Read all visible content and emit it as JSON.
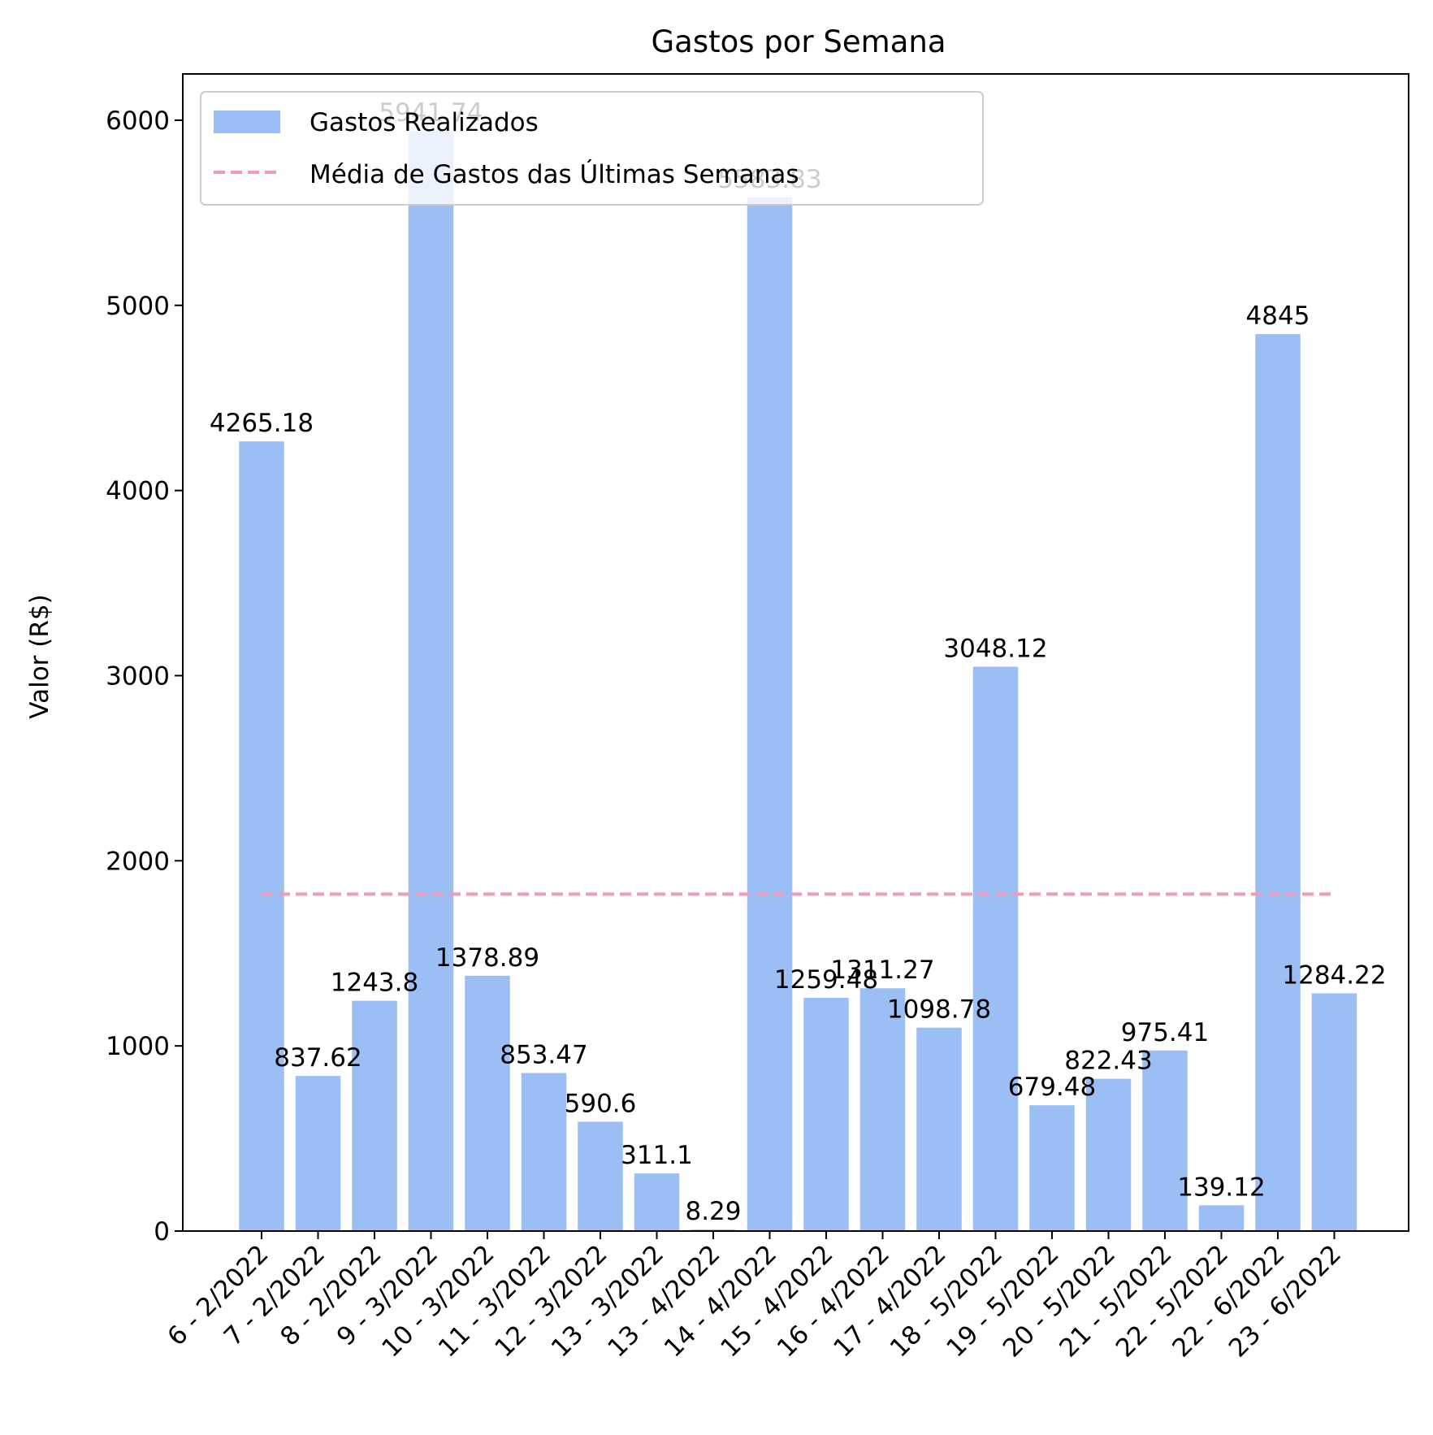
{
  "chart_data": {
    "type": "bar",
    "title": "Gastos por Semana",
    "xlabel": "",
    "ylabel": "Valor (R$)",
    "ylim": [
      0,
      6250
    ],
    "yticks": [
      0,
      1000,
      2000,
      3000,
      4000,
      5000,
      6000
    ],
    "grid": false,
    "legend_position": "upper-left",
    "categories": [
      "6 - 2/2022",
      "7 - 2/2022",
      "8 - 2/2022",
      "9 - 3/2022",
      "10 - 3/2022",
      "11 - 3/2022",
      "12 - 3/2022",
      "13 - 3/2022",
      "13 - 4/2022",
      "14 - 4/2022",
      "15 - 4/2022",
      "16 - 4/2022",
      "17 - 4/2022",
      "18 - 5/2022",
      "19 - 5/2022",
      "20 - 5/2022",
      "21 - 5/2022",
      "22 - 5/2022",
      "22 - 6/2022",
      "23 - 6/2022"
    ],
    "series": [
      {
        "name": "Gastos Realizados",
        "kind": "bar",
        "color": "#9bbef5",
        "values": [
          4265.18,
          837.62,
          1243.8,
          5941.74,
          1378.89,
          853.47,
          590.6,
          311.1,
          8.29,
          5583.83,
          1259.48,
          1311.27,
          1098.78,
          3048.12,
          679.48,
          822.43,
          975.41,
          139.12,
          4845,
          1284.22
        ],
        "value_labels": [
          "4265.18",
          "837.62",
          "1243.8",
          "5941.74",
          "1378.89",
          "853.47",
          "590.6",
          "311.1",
          "8.29",
          "5583.83",
          "1259.48",
          "1311.27",
          "1098.78",
          "3048.12",
          "679.48",
          "822.43",
          "975.41",
          "139.12",
          "4845",
          "1284.22"
        ]
      },
      {
        "name": "Média de Gastos das Últimas Semanas",
        "kind": "line",
        "style": "dashed",
        "color": "#f29ab8",
        "value": 1820
      }
    ]
  }
}
